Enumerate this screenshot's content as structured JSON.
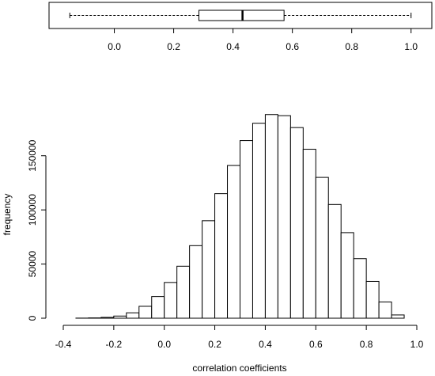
{
  "chart_data": [
    {
      "type": "boxplot",
      "orientation": "horizontal",
      "whisker_low": -0.15,
      "q1": 0.285,
      "median": 0.432,
      "q3": 0.572,
      "whisker_high": 1.0,
      "xlim": [
        -0.22,
        1.07
      ],
      "tick_values": [
        0.0,
        0.2,
        0.4,
        0.6,
        0.8,
        1.0
      ],
      "tick_labels": [
        "0.0",
        "0.2",
        "0.4",
        "0.6",
        "0.8",
        "1.0"
      ]
    },
    {
      "type": "bar",
      "subtype": "histogram",
      "xlabel": "correlation coefficients",
      "ylabel": "frequency",
      "bin_width": 0.05,
      "bin_starts": [
        -0.35,
        -0.3,
        -0.25,
        -0.2,
        -0.15,
        -0.1,
        -0.05,
        0.0,
        0.05,
        0.1,
        0.15,
        0.2,
        0.25,
        0.3,
        0.35,
        0.4,
        0.45,
        0.5,
        0.55,
        0.6,
        0.65,
        0.7,
        0.75,
        0.8,
        0.85,
        0.9
      ],
      "values": [
        100,
        300,
        800,
        2000,
        5000,
        11000,
        20000,
        33000,
        48000,
        67000,
        90000,
        115000,
        141000,
        164000,
        180000,
        188000,
        187000,
        176000,
        156000,
        130000,
        105000,
        79000,
        55000,
        34000,
        15000,
        3000
      ],
      "xlim": [
        -0.4,
        1.0
      ],
      "ylim": [
        0,
        190000
      ],
      "x_ticks": [
        -0.4,
        -0.2,
        0.0,
        0.2,
        0.4,
        0.6,
        0.8,
        1.0
      ],
      "x_tick_labels": [
        "-0.4",
        "-0.2",
        "0.0",
        "0.2",
        "0.4",
        "0.6",
        "0.8",
        "1.0"
      ],
      "y_ticks": [
        0,
        50000,
        100000,
        150000
      ],
      "y_tick_labels": [
        "0",
        "50000",
        "100000",
        "150000"
      ]
    }
  ]
}
